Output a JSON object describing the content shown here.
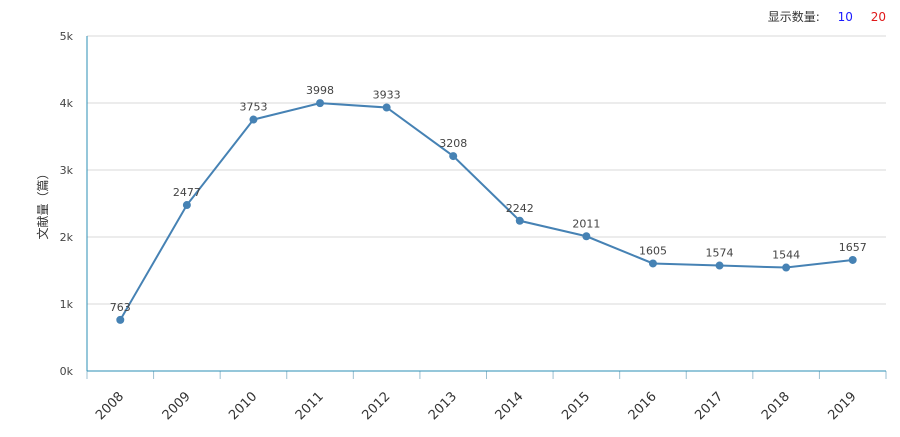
{
  "controls": {
    "show_count_label": "显示数量:",
    "option_10": "10",
    "option_20": "20",
    "option_10_color": "#1a1aff",
    "option_20_color": "#e0191a"
  },
  "chart_data": {
    "type": "line",
    "title": "",
    "xlabel": "",
    "ylabel": "文献量（篇）",
    "x": [
      "2008",
      "2009",
      "2010",
      "2011",
      "2012",
      "2013",
      "2014",
      "2015",
      "2016",
      "2017",
      "2018",
      "2019"
    ],
    "series": [
      {
        "values": [
          763,
          2477,
          3753,
          3998,
          3933,
          3208,
          2242,
          2011,
          1605,
          1574,
          1544,
          1657
        ]
      }
    ],
    "ylim": [
      0,
      5000
    ],
    "yticks": [
      "0k",
      "1k",
      "2k",
      "3k",
      "4k",
      "5k"
    ],
    "grid": true,
    "line_color": "#4682b4",
    "axis_color": "#2b8fb5"
  }
}
